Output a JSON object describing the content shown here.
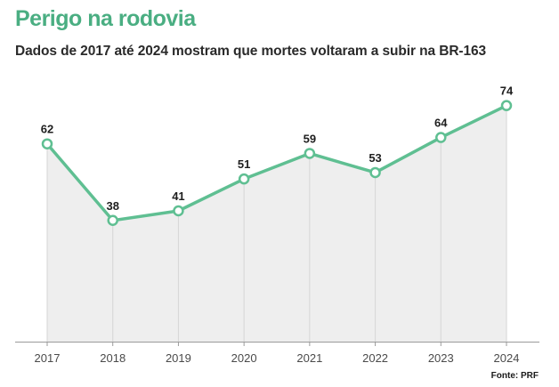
{
  "chart_data": {
    "type": "line",
    "title": "Perigo na rodovia",
    "subtitle": "Dados de 2017 até 2024 mostram que mortes voltaram a subir na BR-163",
    "source": "Fonte: PRF",
    "xlabel": "",
    "ylabel": "",
    "categories": [
      "2017",
      "2018",
      "2019",
      "2020",
      "2021",
      "2022",
      "2023",
      "2024"
    ],
    "series": [
      {
        "name": "Mortes",
        "values": [
          62,
          38,
          41,
          51,
          59,
          53,
          64,
          74
        ]
      }
    ],
    "ylim": [
      0,
      82
    ],
    "grid": "vertical",
    "legend": "none"
  },
  "colors": {
    "title": "#4aae82",
    "line": "#5fbf92",
    "marker_fill": "#ffffff",
    "area": "#eeeeee",
    "gridline": "#d6d6d6",
    "axis": "#9a9a9a"
  }
}
